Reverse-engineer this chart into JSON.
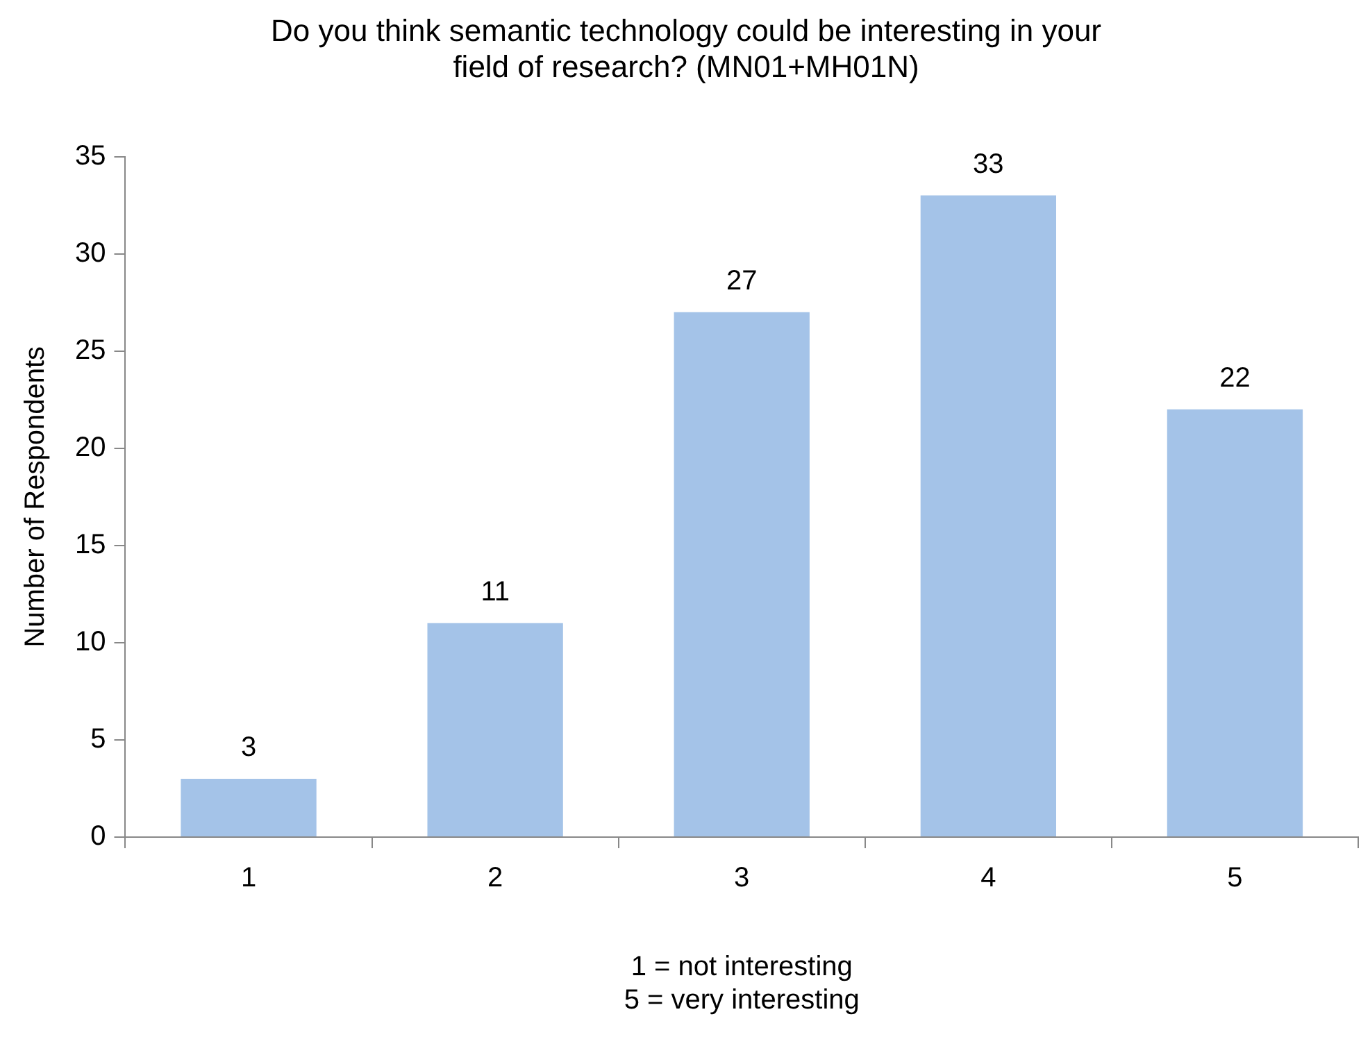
{
  "chart_data": {
    "type": "bar",
    "title": "Do you think semantic technology could be interesting in your\nfield of research? (MN01+MH01N)",
    "xlabel": "1 = not interesting\n5 = very interesting",
    "ylabel": "Number of Respondents",
    "categories": [
      "1",
      "2",
      "3",
      "4",
      "5"
    ],
    "values": [
      3,
      11,
      27,
      33,
      22
    ],
    "color": "#a4c3e8",
    "ylim": [
      0,
      35
    ],
    "yticks": [
      0,
      5,
      10,
      15,
      20,
      25,
      30,
      35
    ],
    "grid": false,
    "data_labels": true
  }
}
